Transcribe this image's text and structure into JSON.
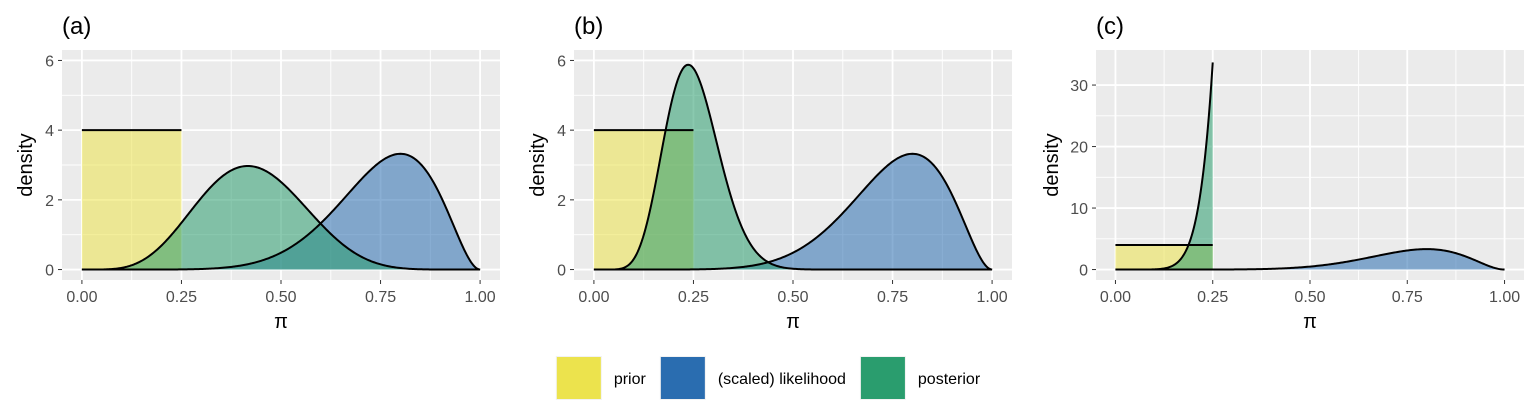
{
  "figure": {
    "legend": {
      "position": "bottom",
      "entries": [
        {
          "key": "prior",
          "label": "prior",
          "color": "#ECE34D"
        },
        {
          "key": "likelihood",
          "label": "(scaled) likelihood",
          "color": "#2A6DB0"
        },
        {
          "key": "posterior",
          "label": "posterior",
          "color": "#2A9D6E"
        }
      ]
    },
    "style": {
      "panel_background": "#EBEBEB",
      "grid_color": "#FFFFFF",
      "outline_color": "#000000",
      "area_opacity": 0.55
    }
  },
  "chart_data": [
    {
      "type": "area",
      "title": "(a)",
      "xlabel": "π",
      "ylabel": "density",
      "xlim": [
        0,
        1
      ],
      "ylim": [
        0,
        6
      ],
      "x_ticks": [
        0,
        0.25,
        0.5,
        0.75,
        1
      ],
      "x_tick_labels": [
        "0.00",
        "0.25",
        "0.50",
        "0.75",
        "1.00"
      ],
      "y_ticks": [
        0,
        2,
        4,
        6
      ],
      "y_tick_labels": [
        "0",
        "2",
        "4",
        "6"
      ],
      "grid": true,
      "series": [
        {
          "name": "prior",
          "dist": "uniform",
          "params": [
            0,
            0.25
          ]
        },
        {
          "name": "(scaled) likelihood",
          "dist": "beta",
          "params": [
            9,
            3
          ]
        },
        {
          "name": "posterior",
          "dist": "beta",
          "params": [
            6,
            8
          ]
        }
      ]
    },
    {
      "type": "area",
      "title": "(b)",
      "xlabel": "π",
      "ylabel": "density",
      "xlim": [
        0,
        1
      ],
      "ylim": [
        0,
        6
      ],
      "x_ticks": [
        0,
        0.25,
        0.5,
        0.75,
        1
      ],
      "x_tick_labels": [
        "0.00",
        "0.25",
        "0.50",
        "0.75",
        "1.00"
      ],
      "y_ticks": [
        0,
        2,
        4,
        6
      ],
      "y_tick_labels": [
        "0",
        "2",
        "4",
        "6"
      ],
      "grid": true,
      "series": [
        {
          "name": "prior",
          "dist": "uniform",
          "params": [
            0,
            0.25
          ]
        },
        {
          "name": "(scaled) likelihood",
          "dist": "beta",
          "params": [
            9,
            3
          ]
        },
        {
          "name": "posterior",
          "dist": "beta",
          "params": [
            10,
            30
          ]
        }
      ]
    },
    {
      "type": "area",
      "title": "(c)",
      "xlabel": "π",
      "ylabel": "density",
      "xlim": [
        0,
        1
      ],
      "ylim": [
        0,
        34
      ],
      "x_ticks": [
        0,
        0.25,
        0.5,
        0.75,
        1
      ],
      "x_tick_labels": [
        "0.00",
        "0.25",
        "0.50",
        "0.75",
        "1.00"
      ],
      "y_ticks": [
        0,
        10,
        20,
        30
      ],
      "y_tick_labels": [
        "0",
        "10",
        "20",
        "30"
      ],
      "grid": true,
      "series": [
        {
          "name": "prior",
          "dist": "uniform",
          "params": [
            0,
            0.25
          ]
        },
        {
          "name": "(scaled) likelihood",
          "dist": "beta",
          "params": [
            9,
            3
          ]
        },
        {
          "name": "posterior",
          "dist": "truncated-beta",
          "params": [
            9,
            3,
            0,
            0.25
          ]
        }
      ]
    }
  ]
}
